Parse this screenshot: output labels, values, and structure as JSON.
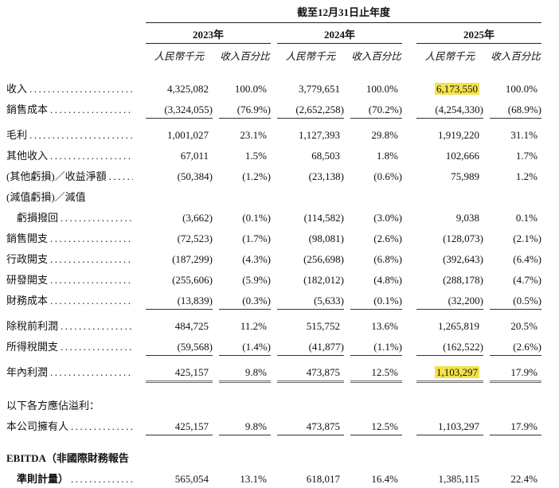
{
  "document": {
    "highlight_color": "#f3e24b"
  },
  "table": {
    "period_header": "截至12月31日止年度",
    "years": [
      "2023年",
      "2024年",
      "2025年"
    ],
    "subheader_amount": "人民幣千元",
    "subheader_percent": "收入百分比",
    "leader_dots": "..............................................................",
    "rows": [
      {
        "label": "收入",
        "leader": true,
        "cells": [
          "4,325,082",
          "100.0%",
          "3,779,651",
          "100.0%",
          "6,173,550",
          "100.0%"
        ],
        "highlights": [
          4
        ]
      },
      {
        "label": "銷售成本",
        "leader": true,
        "cells": [
          "(3,324,055)",
          "(76.9%)",
          "(2,652,258)",
          "(70.2%)",
          "(4,254,330)",
          "(68.9%)"
        ],
        "rule_below": "single"
      },
      {
        "label": "毛利",
        "leader": true,
        "cells": [
          "1,001,027",
          "23.1%",
          "1,127,393",
          "29.8%",
          "1,919,220",
          "31.1%"
        ]
      },
      {
        "label": "其他收入",
        "leader": true,
        "cells": [
          "67,011",
          "1.5%",
          "68,503",
          "1.8%",
          "102,666",
          "1.7%"
        ]
      },
      {
        "label": "(其他虧損)／收益淨額",
        "leader": true,
        "cells": [
          "(50,384)",
          "(1.2%)",
          "(23,138)",
          "(0.6%)",
          "75,989",
          "1.2%"
        ]
      },
      {
        "label": "(減值虧損)／減值",
        "leader": false,
        "cells": null
      },
      {
        "label": "虧損撥回",
        "leader": true,
        "indent": true,
        "cells": [
          "(3,662)",
          "(0.1%)",
          "(114,582)",
          "(3.0%)",
          "9,038",
          "0.1%"
        ]
      },
      {
        "label": "銷售開支",
        "leader": true,
        "cells": [
          "(72,523)",
          "(1.7%)",
          "(98,081)",
          "(2.6%)",
          "(128,073)",
          "(2.1%)"
        ]
      },
      {
        "label": "行政開支",
        "leader": true,
        "cells": [
          "(187,299)",
          "(4.3%)",
          "(256,698)",
          "(6.8%)",
          "(392,643)",
          "(6.4%)"
        ]
      },
      {
        "label": "研發開支",
        "leader": true,
        "cells": [
          "(255,606)",
          "(5.9%)",
          "(182,012)",
          "(4.8%)",
          "(288,178)",
          "(4.7%)"
        ]
      },
      {
        "label": "財務成本",
        "leader": true,
        "cells": [
          "(13,839)",
          "(0.3%)",
          "(5,633)",
          "(0.1%)",
          "(32,200)",
          "(0.5%)"
        ],
        "rule_below": "single"
      },
      {
        "label": "除稅前利潤",
        "leader": true,
        "cells": [
          "484,725",
          "11.2%",
          "515,752",
          "13.6%",
          "1,265,819",
          "20.5%"
        ]
      },
      {
        "label": "所得稅開支",
        "leader": true,
        "cells": [
          "(59,568)",
          "(1.4%)",
          "(41,877)",
          "(1.1%)",
          "(162,522)",
          "(2.6%)"
        ],
        "rule_below": "single"
      },
      {
        "label": "年內利潤",
        "leader": true,
        "cells": [
          "425,157",
          "9.8%",
          "473,875",
          "12.5%",
          "1,103,297",
          "17.9%"
        ],
        "highlights": [
          4
        ],
        "rule_below": "double"
      },
      {
        "label": "以下各方應佔溢利：",
        "leader": false,
        "cells": null,
        "spacer_before": true
      },
      {
        "label": "本公司擁有人",
        "leader": true,
        "cells": [
          "425,157",
          "9.8%",
          "473,875",
          "12.5%",
          "1,103,297",
          "17.9%"
        ],
        "rule_below": "single"
      },
      {
        "label": "EBITDA（非國際財務報告",
        "leader": false,
        "bold": true,
        "cells": null,
        "spacer_before": true
      },
      {
        "label": "準則計量）",
        "leader": true,
        "indent": true,
        "bold": true,
        "cells": [
          "565,054",
          "13.1%",
          "618,017",
          "16.4%",
          "1,385,115",
          "22.4%"
        ]
      }
    ]
  }
}
